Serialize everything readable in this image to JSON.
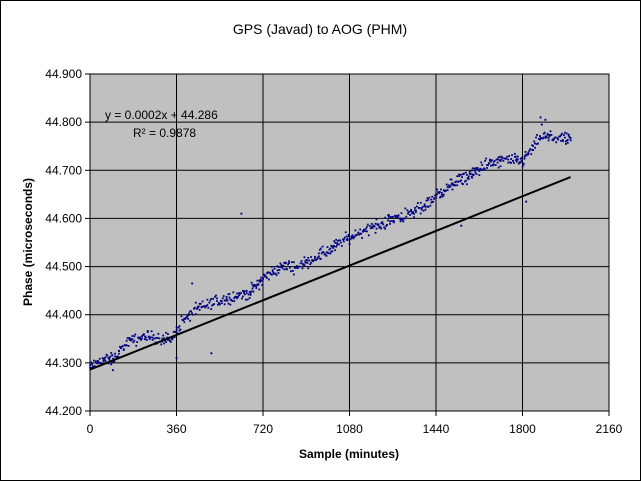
{
  "chart_data": {
    "type": "scatter",
    "title": "GPS (Javad) to AOG (PHM)",
    "xlabel": "Sample (minutes)",
    "ylabel": "Phase (microseconds)",
    "xlim": [
      0,
      2160
    ],
    "ylim": [
      44.2,
      44.9
    ],
    "x_ticks": [
      0,
      360,
      720,
      1080,
      1440,
      1800,
      2160
    ],
    "x_tick_labels": [
      "0",
      "360",
      "720",
      "1080",
      "1440",
      "1800",
      "2160"
    ],
    "y_ticks": [
      44.2,
      44.3,
      44.4,
      44.5,
      44.6,
      44.7,
      44.8,
      44.9
    ],
    "y_tick_labels": [
      "44.200",
      "44.300",
      "44.400",
      "44.500",
      "44.600",
      "44.700",
      "44.800",
      "44.900"
    ],
    "grid": true,
    "plot_background": "#c0c0c0",
    "point_color": "#000080",
    "trendline": {
      "equation": "y = 0.0002x + 44.286",
      "r_squared": "R² = 0.9878",
      "slope": 0.0002,
      "intercept": 44.286,
      "x_range": [
        0,
        2000
      ],
      "color": "#000000"
    },
    "anchors": [
      [
        0,
        44.29
      ],
      [
        40,
        44.305
      ],
      [
        100,
        44.31
      ],
      [
        150,
        44.34
      ],
      [
        200,
        44.35
      ],
      [
        260,
        44.355
      ],
      [
        300,
        44.35
      ],
      [
        340,
        44.35
      ],
      [
        380,
        44.385
      ],
      [
        440,
        44.41
      ],
      [
        520,
        44.425
      ],
      [
        600,
        44.44
      ],
      [
        660,
        44.445
      ],
      [
        720,
        44.475
      ],
      [
        760,
        44.49
      ],
      [
        800,
        44.5
      ],
      [
        860,
        44.5
      ],
      [
        920,
        44.515
      ],
      [
        980,
        44.53
      ],
      [
        1060,
        44.555
      ],
      [
        1140,
        44.575
      ],
      [
        1200,
        44.585
      ],
      [
        1260,
        44.6
      ],
      [
        1340,
        44.61
      ],
      [
        1400,
        44.63
      ],
      [
        1460,
        44.655
      ],
      [
        1520,
        44.675
      ],
      [
        1580,
        44.69
      ],
      [
        1640,
        44.71
      ],
      [
        1720,
        44.72
      ],
      [
        1800,
        44.72
      ],
      [
        1840,
        44.745
      ],
      [
        1880,
        44.77
      ],
      [
        1960,
        44.765
      ],
      [
        2000,
        44.765
      ]
    ],
    "sample_step": 4,
    "noise_amplitude": 0.009,
    "outliers": [
      [
        630,
        44.61
      ],
      [
        505,
        44.32
      ],
      [
        1815,
        44.635
      ],
      [
        1875,
        44.81
      ],
      [
        1895,
        44.805
      ],
      [
        1880,
        44.795
      ],
      [
        1545,
        44.585
      ],
      [
        120,
        44.325
      ],
      [
        95,
        44.285
      ],
      [
        360,
        44.31
      ],
      [
        425,
        44.465
      ],
      [
        1590,
        44.685
      ]
    ]
  }
}
